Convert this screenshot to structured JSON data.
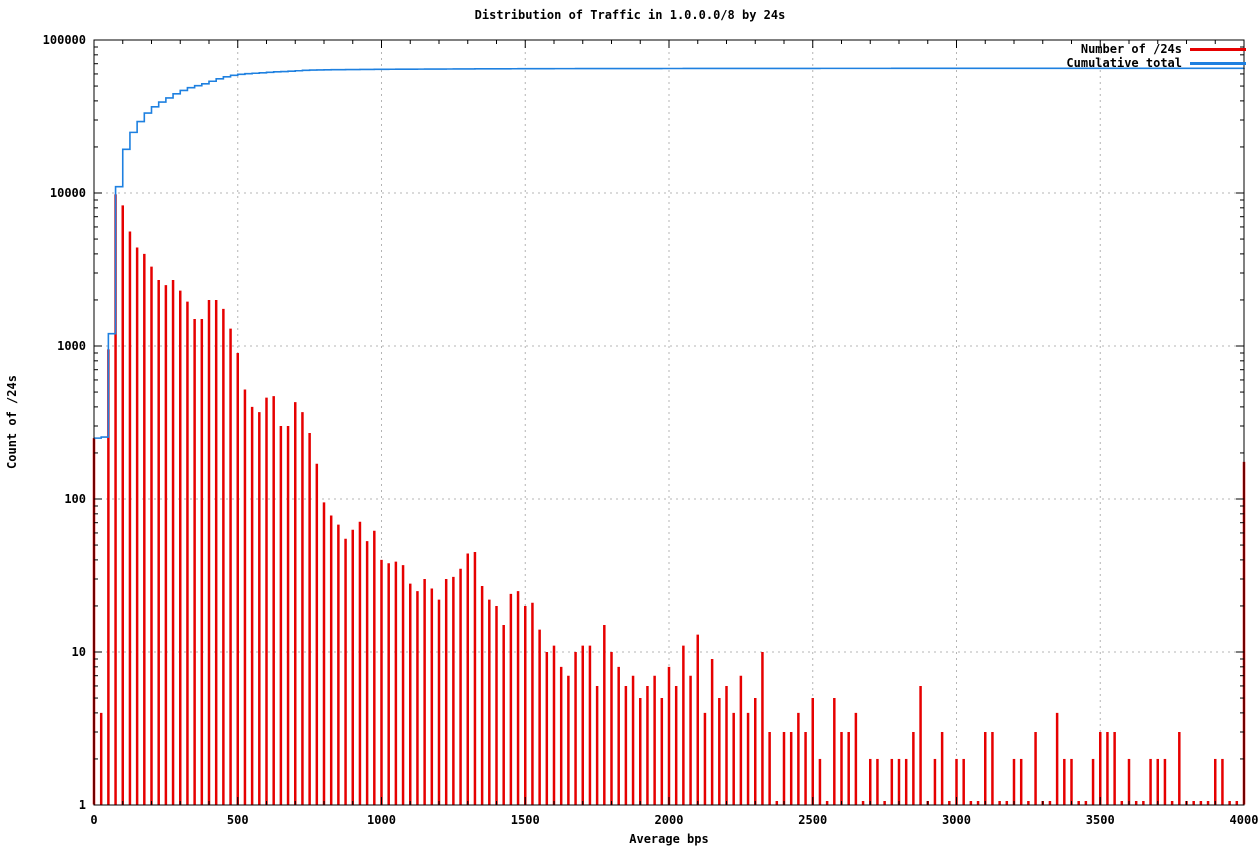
{
  "page": {
    "title": "Distribution of Traffic in 1.0.0.0/8 by 24s"
  },
  "legend": {
    "items": [
      {
        "label": "Number of /24s",
        "color": "#e60000",
        "series": "bars"
      },
      {
        "label": "Cumulative total",
        "color": "#1e80e0",
        "series": "cumulative"
      }
    ]
  },
  "axes": {
    "x_label": "Average bps",
    "y_label": "Count of /24s",
    "x_tick_labels": [
      "0",
      "500",
      "1000",
      "1500",
      "2000",
      "2500",
      "3000",
      "3500",
      "4000"
    ],
    "y_tick_labels": [
      "1",
      "10",
      "100",
      "1000",
      "10000",
      "100000"
    ]
  },
  "chart_data": {
    "type": "bar",
    "title": "Distribution of Traffic in 1.0.0.0/8 by 24s",
    "xlabel": "Average bps",
    "ylabel": "Count of /24s",
    "x_scale": "linear",
    "y_scale": "log",
    "xlim": [
      0,
      4000
    ],
    "ylim": [
      1,
      100000
    ],
    "grid": true,
    "legend_position": "top-right",
    "x_major_tick_step": 500,
    "x_minor_tick_step": 100,
    "bin_start": 0,
    "bin_step": 25,
    "series": [
      {
        "name": "Number of /24s",
        "style": "impulses",
        "color": "#e60000",
        "values": [
          250,
          4,
          950,
          9800,
          8300,
          5600,
          4400,
          4000,
          3300,
          2700,
          2500,
          2700,
          2300,
          1950,
          1500,
          1500,
          2000,
          2000,
          1750,
          1300,
          900,
          520,
          400,
          370,
          460,
          470,
          300,
          300,
          430,
          370,
          270,
          170,
          95,
          78,
          68,
          55,
          63,
          71,
          53,
          62,
          40,
          38,
          39,
          37,
          28,
          25,
          30,
          26,
          22,
          30,
          31,
          35,
          44,
          45,
          27,
          22,
          20,
          15,
          24,
          25,
          20,
          21,
          14,
          10,
          11,
          8,
          7,
          10,
          11,
          11,
          6,
          15,
          10,
          8,
          6,
          7,
          5,
          6,
          7,
          5,
          8,
          6,
          11,
          7,
          13,
          4,
          9,
          5,
          6,
          4,
          7,
          4,
          5,
          10,
          3,
          1,
          3,
          3,
          4,
          3,
          5,
          2,
          1,
          5,
          3,
          3,
          4,
          1,
          2,
          2,
          1,
          2,
          2,
          2,
          3,
          6,
          1,
          2,
          3,
          1,
          2,
          2,
          1,
          1,
          3,
          3,
          1,
          1,
          2,
          2,
          1,
          3,
          1,
          1,
          4,
          2,
          2,
          1,
          1,
          2,
          3,
          3,
          3,
          1,
          2,
          1,
          1,
          2,
          2,
          2,
          1,
          3,
          1,
          1,
          1,
          1,
          2,
          2,
          1,
          1,
          175
        ]
      },
      {
        "name": "Cumulative total",
        "style": "steps",
        "color": "#1e80e0",
        "derivation": "cumulative sum of 'Number of /24s' values",
        "start_value": 250,
        "final_total": 65522
      }
    ]
  },
  "colors": {
    "bars": "#e60000",
    "cumulative": "#1e80e0",
    "grid": "#b4b4b4",
    "border": "#000000",
    "background": "#ffffff"
  }
}
